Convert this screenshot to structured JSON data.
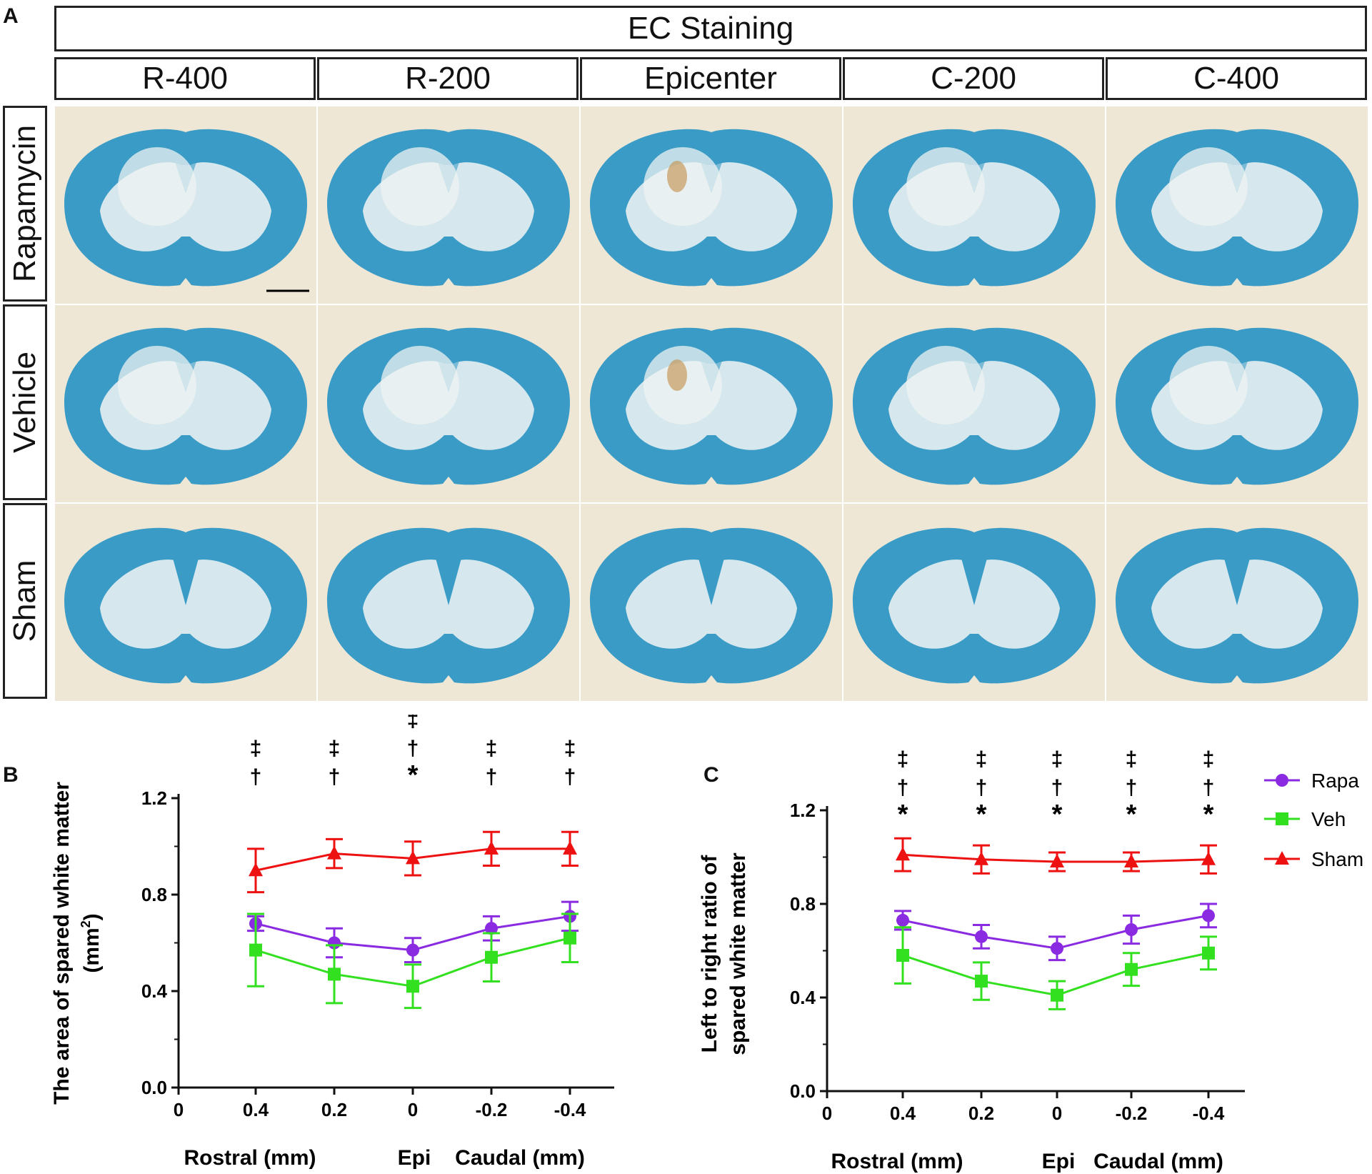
{
  "panel_a": {
    "letter": "A",
    "title": "EC Staining",
    "columns": [
      "R-400",
      "R-200",
      "Epicenter",
      "C-200",
      "C-400"
    ],
    "rows": [
      "Rapamycin",
      "Vehicle",
      "Sham"
    ],
    "tissue_color": "#3a9cc6",
    "background_color": "#eee7d6",
    "lesion_color": "#c79a5d"
  },
  "chart_data": [
    {
      "panel": "B",
      "type": "line",
      "xlabel": "",
      "ylabel": "The area of spared white matter",
      "ylabel_units": "(mm",
      "ylabel_sup": "2",
      "ylabel_close": ")",
      "x_origin_label": "0",
      "categories": [
        "0.4",
        "0.2",
        "0",
        "-0.2",
        "-0.4"
      ],
      "region_labels": [
        "Rostral (mm)",
        "Epi",
        "Caudal (mm)"
      ],
      "ylim": [
        0,
        1.2
      ],
      "yticks": [
        "0.0",
        "0.4",
        "0.8",
        "1.2"
      ],
      "series": [
        {
          "name": "Rapa",
          "color": "#8a2be2",
          "marker": "circle",
          "values": [
            0.68,
            0.6,
            0.57,
            0.66,
            0.71
          ],
          "errors": [
            0.03,
            0.06,
            0.05,
            0.05,
            0.06
          ]
        },
        {
          "name": "Veh",
          "color": "#33e020",
          "marker": "square",
          "values": [
            0.57,
            0.47,
            0.42,
            0.54,
            0.62
          ],
          "errors": [
            0.15,
            0.12,
            0.09,
            0.1,
            0.1
          ]
        },
        {
          "name": "Sham",
          "color": "#ee1111",
          "marker": "triangle",
          "values": [
            0.9,
            0.97,
            0.95,
            0.99,
            0.99
          ],
          "errors": [
            0.09,
            0.06,
            0.07,
            0.07,
            0.07
          ]
        }
      ],
      "significance": [
        [
          "‡",
          "†"
        ],
        [
          "‡",
          "†"
        ],
        [
          "‡",
          "†",
          "*"
        ],
        [
          "‡",
          "†"
        ],
        [
          "‡",
          "†"
        ]
      ]
    },
    {
      "panel": "C",
      "type": "line",
      "xlabel": "",
      "ylabel_line1": "Left to right ratio of",
      "ylabel_line2": "spared white matter",
      "x_origin_label": "0",
      "categories": [
        "0.4",
        "0.2",
        "0",
        "-0.2",
        "-0.4"
      ],
      "region_labels": [
        "Rostral (mm)",
        "Epi",
        "Caudal (mm)"
      ],
      "ylim": [
        0,
        1.2
      ],
      "yticks": [
        "0.0",
        "0.4",
        "0.8",
        "1.2"
      ],
      "series": [
        {
          "name": "Rapa",
          "color": "#8a2be2",
          "marker": "circle",
          "values": [
            0.73,
            0.66,
            0.61,
            0.69,
            0.75
          ],
          "errors": [
            0.04,
            0.05,
            0.05,
            0.06,
            0.05
          ]
        },
        {
          "name": "Veh",
          "color": "#33e020",
          "marker": "square",
          "values": [
            0.58,
            0.47,
            0.41,
            0.52,
            0.59
          ],
          "errors": [
            0.12,
            0.08,
            0.06,
            0.07,
            0.07
          ]
        },
        {
          "name": "Sham",
          "color": "#ee1111",
          "marker": "triangle",
          "values": [
            1.01,
            0.99,
            0.98,
            0.98,
            0.99
          ],
          "errors": [
            0.07,
            0.06,
            0.04,
            0.04,
            0.06
          ]
        }
      ],
      "significance": [
        [
          "‡",
          "†",
          "*"
        ],
        [
          "‡",
          "†",
          "*"
        ],
        [
          "‡",
          "†",
          "*"
        ],
        [
          "‡",
          "†",
          "*"
        ],
        [
          "‡",
          "†",
          "*"
        ]
      ],
      "legend": [
        "Rapa",
        "Veh",
        "Sham"
      ]
    }
  ]
}
